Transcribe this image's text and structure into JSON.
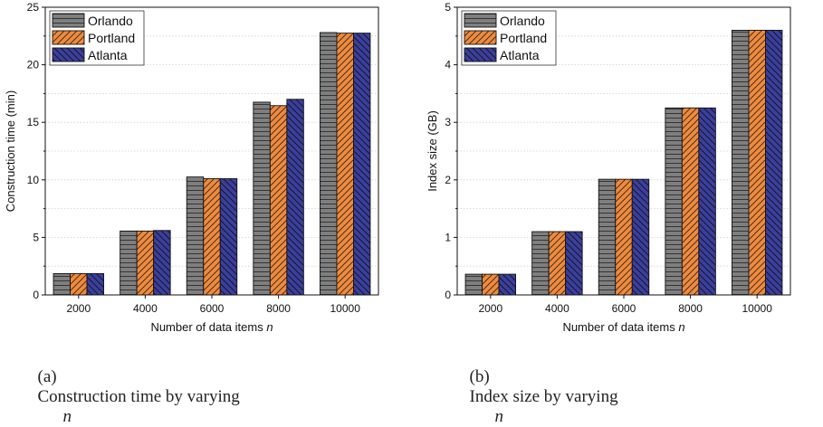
{
  "captions": [
    {
      "label": "(a)",
      "text": "Construction time by varying",
      "var": "n"
    },
    {
      "label": "(b)",
      "text": "Index size by varying",
      "var": "n"
    }
  ],
  "colors": {
    "Orlando": "#7f7f7f",
    "Portland": "#f08a3c",
    "Atlanta": "#3a3f9e",
    "grid": "#cfcfcf"
  },
  "chart_data": [
    {
      "type": "bar",
      "xlabel": "Number of data items",
      "xlabel_var": "n",
      "ylabel": "Construction time (min)",
      "categories": [
        "2000",
        "4000",
        "6000",
        "8000",
        "10000"
      ],
      "ylim": [
        0,
        25
      ],
      "yticks": [
        0,
        5,
        10,
        15,
        20,
        25
      ],
      "grid": true,
      "legend": "top-left",
      "series": [
        {
          "name": "Orlando",
          "values": [
            1.85,
            5.55,
            10.25,
            16.75,
            22.8
          ]
        },
        {
          "name": "Portland",
          "values": [
            1.85,
            5.55,
            10.1,
            16.45,
            22.75
          ]
        },
        {
          "name": "Atlanta",
          "values": [
            1.85,
            5.6,
            10.1,
            17.0,
            22.75
          ]
        }
      ]
    },
    {
      "type": "bar",
      "xlabel": "Number of data items",
      "xlabel_var": "n",
      "ylabel": "Index size (GB)",
      "categories": [
        "2000",
        "4000",
        "6000",
        "8000",
        "10000"
      ],
      "ylim": [
        0,
        5
      ],
      "yticks": [
        0,
        1,
        2,
        3,
        4,
        5
      ],
      "grid": true,
      "legend": "top-left",
      "series": [
        {
          "name": "Orlando",
          "values": [
            0.36,
            1.1,
            2.01,
            3.25,
            4.6
          ]
        },
        {
          "name": "Portland",
          "values": [
            0.36,
            1.1,
            2.01,
            3.25,
            4.6
          ]
        },
        {
          "name": "Atlanta",
          "values": [
            0.36,
            1.1,
            2.01,
            3.25,
            4.6
          ]
        }
      ]
    }
  ]
}
